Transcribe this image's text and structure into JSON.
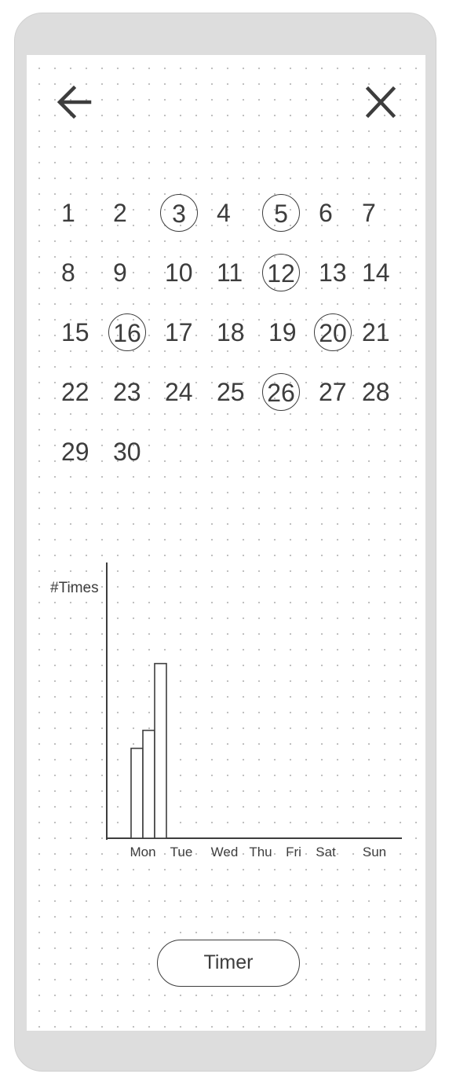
{
  "header": {
    "back_icon": "arrow-left-icon",
    "close_icon": "close-icon"
  },
  "calendar": {
    "days": [
      {
        "label": "1",
        "marked": false
      },
      {
        "label": "2",
        "marked": false
      },
      {
        "label": "3",
        "marked": true
      },
      {
        "label": "4",
        "marked": false
      },
      {
        "label": "5",
        "marked": true
      },
      {
        "label": "6",
        "marked": false
      },
      {
        "label": "7",
        "marked": false
      },
      {
        "label": "8",
        "marked": false
      },
      {
        "label": "9",
        "marked": false
      },
      {
        "label": "10",
        "marked": false
      },
      {
        "label": "11",
        "marked": false
      },
      {
        "label": "12",
        "marked": true
      },
      {
        "label": "13",
        "marked": false
      },
      {
        "label": "14",
        "marked": false
      },
      {
        "label": "15",
        "marked": false
      },
      {
        "label": "16",
        "marked": true
      },
      {
        "label": "17",
        "marked": false
      },
      {
        "label": "18",
        "marked": false
      },
      {
        "label": "19",
        "marked": false
      },
      {
        "label": "20",
        "marked": true
      },
      {
        "label": "21",
        "marked": false
      },
      {
        "label": "22",
        "marked": false
      },
      {
        "label": "23",
        "marked": false
      },
      {
        "label": "24",
        "marked": false
      },
      {
        "label": "25",
        "marked": false
      },
      {
        "label": "26",
        "marked": true
      },
      {
        "label": "27",
        "marked": false
      },
      {
        "label": "28",
        "marked": false
      },
      {
        "label": "29",
        "marked": false
      },
      {
        "label": "30",
        "marked": false
      }
    ]
  },
  "chart_data": {
    "type": "bar",
    "ylabel": "#Times",
    "xlabel": "",
    "categories": [
      "Mon",
      "Tue",
      "Wed",
      "Thu",
      "Fri",
      "Sat",
      "Sun"
    ],
    "bars": [
      {
        "category": "Mon",
        "value": 3.5
      },
      {
        "category": "Mon",
        "value": 4.2
      },
      {
        "category": "Mon",
        "value": 6.8
      }
    ],
    "ylim": [
      0,
      10
    ],
    "grid": false
  },
  "footer": {
    "timer_label": "Timer"
  }
}
